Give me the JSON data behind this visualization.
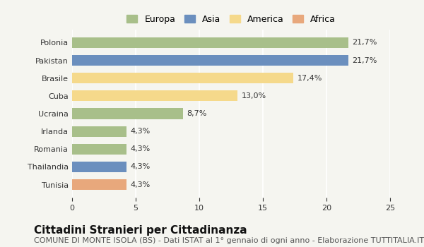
{
  "categories": [
    "Polonia",
    "Pakistan",
    "Brasile",
    "Cuba",
    "Ucraina",
    "Irlanda",
    "Romania",
    "Thailandia",
    "Tunisia"
  ],
  "values": [
    21.7,
    21.7,
    17.4,
    13.0,
    8.7,
    4.3,
    4.3,
    4.3,
    4.3
  ],
  "labels": [
    "21,7%",
    "21,7%",
    "17,4%",
    "13,0%",
    "8,7%",
    "4,3%",
    "4,3%",
    "4,3%",
    "4,3%"
  ],
  "continents": [
    "Europa",
    "Asia",
    "America",
    "America",
    "Europa",
    "Europa",
    "Europa",
    "Asia",
    "Africa"
  ],
  "colors": {
    "Europa": "#a8bf8a",
    "Asia": "#6b8fbe",
    "America": "#f5d98b",
    "Africa": "#e8a87c"
  },
  "legend_order": [
    "Europa",
    "Asia",
    "America",
    "Africa"
  ],
  "xlim": [
    0,
    25
  ],
  "xticks": [
    0,
    5,
    10,
    15,
    20,
    25
  ],
  "title": "Cittadini Stranieri per Cittadinanza",
  "subtitle": "COMUNE DI MONTE ISOLA (BS) - Dati ISTAT al 1° gennaio di ogni anno - Elaborazione TUTTITALIA.IT",
  "bg_color": "#f5f5f0",
  "bar_height": 0.6,
  "title_fontsize": 11,
  "subtitle_fontsize": 8,
  "label_fontsize": 8,
  "tick_fontsize": 8,
  "legend_fontsize": 9
}
